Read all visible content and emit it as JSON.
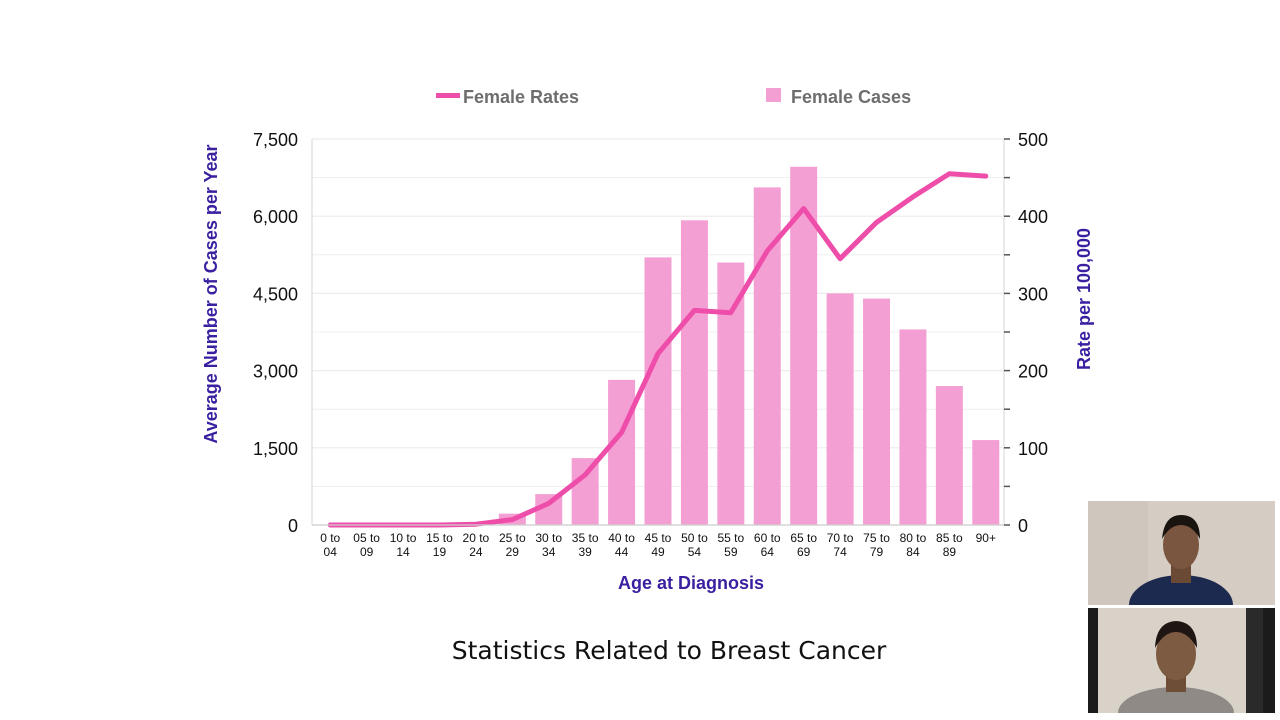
{
  "colors": {
    "bars": "#f49fd3",
    "line": "#ee4eaa",
    "axis_title": "#3a1fa0",
    "grid": "#ececec"
  },
  "caption": "Statistics Related to Breast Cancer",
  "chart_data": {
    "type": "bar+line",
    "legend": [
      "Female Rates",
      "Female Cases"
    ],
    "legend_position": "top",
    "xlabel": "Age at Diagnosis",
    "ylabel_left": "Average Number of Cases per Year",
    "ylabel_right": "Rate per 100,000",
    "categories": [
      [
        "0 to",
        "04"
      ],
      [
        "05 to",
        "09"
      ],
      [
        "10 to",
        "14"
      ],
      [
        "15 to",
        "19"
      ],
      [
        "20 to",
        "24"
      ],
      [
        "25 to",
        "29"
      ],
      [
        "30 to",
        "34"
      ],
      [
        "35 to",
        "39"
      ],
      [
        "40 to",
        "44"
      ],
      [
        "45 to",
        "49"
      ],
      [
        "50 to",
        "54"
      ],
      [
        "55 to",
        "59"
      ],
      [
        "60 to",
        "64"
      ],
      [
        "65 to",
        "69"
      ],
      [
        "70 to",
        "74"
      ],
      [
        "75 to",
        "79"
      ],
      [
        "80 to",
        "84"
      ],
      [
        "85 to",
        "89"
      ],
      [
        "90+",
        ""
      ]
    ],
    "y_left": {
      "min": 0,
      "max": 7500,
      "ticks": [
        "0",
        "1,500",
        "3,000",
        "4,500",
        "6,000",
        "7,500"
      ]
    },
    "y_right": {
      "min": 0,
      "max": 500,
      "ticks": [
        "0",
        "100",
        "200",
        "300",
        "400",
        "500"
      ]
    },
    "grid": true,
    "series": [
      {
        "name": "Female Cases",
        "type": "bar",
        "axis": "left",
        "values": [
          0,
          0,
          0,
          5,
          40,
          220,
          600,
          1300,
          2820,
          5200,
          5920,
          5100,
          6560,
          6960,
          4500,
          4400,
          3800,
          2700,
          1650
        ]
      },
      {
        "name": "Female Rates",
        "type": "line",
        "axis": "right",
        "values": [
          0,
          0,
          0,
          0,
          1,
          7,
          28,
          65,
          120,
          222,
          278,
          275,
          355,
          410,
          345,
          392,
          425,
          455,
          452
        ]
      }
    ]
  }
}
